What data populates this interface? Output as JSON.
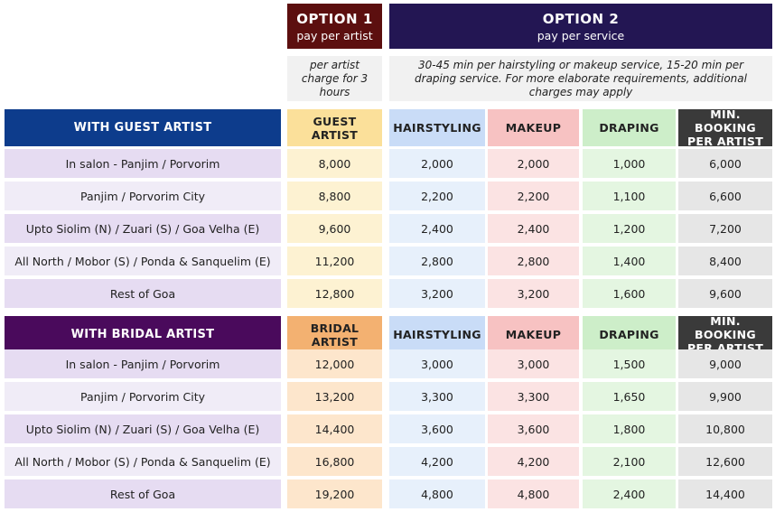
{
  "options": {
    "option1": {
      "title": "OPTION 1",
      "subtitle": "pay per artist",
      "note": "per artist charge for 3 hours"
    },
    "option2": {
      "title": "OPTION 2",
      "subtitle": "pay per service",
      "note": "30-45 min per hairstyling or makeup service, 15-20 min per draping service. For more elaborate requirements, additional charges may apply"
    }
  },
  "colors": {
    "option1_bg": "#5c0f0f",
    "option2_bg": "#231653",
    "guest_section": "#0d3c8c",
    "bridal_section": "#4a0a5c",
    "label_bg": "#e6dcf2",
    "label_bg_alt": "#f0ecf7"
  },
  "sections": [
    {
      "title": "WITH GUEST ARTIST",
      "headers": [
        "GUEST ARTIST",
        "HAIRSTYLING",
        "MAKEUP",
        "DRAPING",
        "MIN. BOOKING PER ARTIST"
      ],
      "rows": [
        {
          "label": "In salon - Panjim / Porvorim",
          "values": [
            "8,000",
            "2,000",
            "2,000",
            "1,000",
            "6,000"
          ]
        },
        {
          "label": "Panjim / Porvorim City",
          "values": [
            "8,800",
            "2,200",
            "2,200",
            "1,100",
            "6,600"
          ]
        },
        {
          "label": "Upto Siolim (N) / Zuari (S) / Goa Velha (E)",
          "values": [
            "9,600",
            "2,400",
            "2,400",
            "1,200",
            "7,200"
          ]
        },
        {
          "label": "All North / Mobor (S) / Ponda & Sanquelim (E)",
          "values": [
            "11,200",
            "2,800",
            "2,800",
            "1,400",
            "8,400"
          ]
        },
        {
          "label": "Rest of Goa",
          "values": [
            "12,800",
            "3,200",
            "3,200",
            "1,600",
            "9,600"
          ]
        }
      ]
    },
    {
      "title": "WITH BRIDAL ARTIST",
      "headers": [
        "BRIDAL ARTIST",
        "HAIRSTYLING",
        "MAKEUP",
        "DRAPING",
        "MIN. BOOKING PER ARTIST"
      ],
      "rows": [
        {
          "label": "In salon - Panjim / Porvorim",
          "values": [
            "12,000",
            "3,000",
            "3,000",
            "1,500",
            "9,000"
          ]
        },
        {
          "label": "Panjim / Porvorim City",
          "values": [
            "13,200",
            "3,300",
            "3,300",
            "1,650",
            "9,900"
          ]
        },
        {
          "label": "Upto Siolim (N) / Zuari (S) / Goa Velha (E)",
          "values": [
            "14,400",
            "3,600",
            "3,600",
            "1,800",
            "10,800"
          ]
        },
        {
          "label": "All North / Mobor (S) / Ponda & Sanquelim (E)",
          "values": [
            "16,800",
            "4,200",
            "4,200",
            "2,100",
            "12,600"
          ]
        },
        {
          "label": "Rest of Goa",
          "values": [
            "19,200",
            "4,800",
            "4,800",
            "2,400",
            "14,400"
          ]
        }
      ]
    }
  ]
}
